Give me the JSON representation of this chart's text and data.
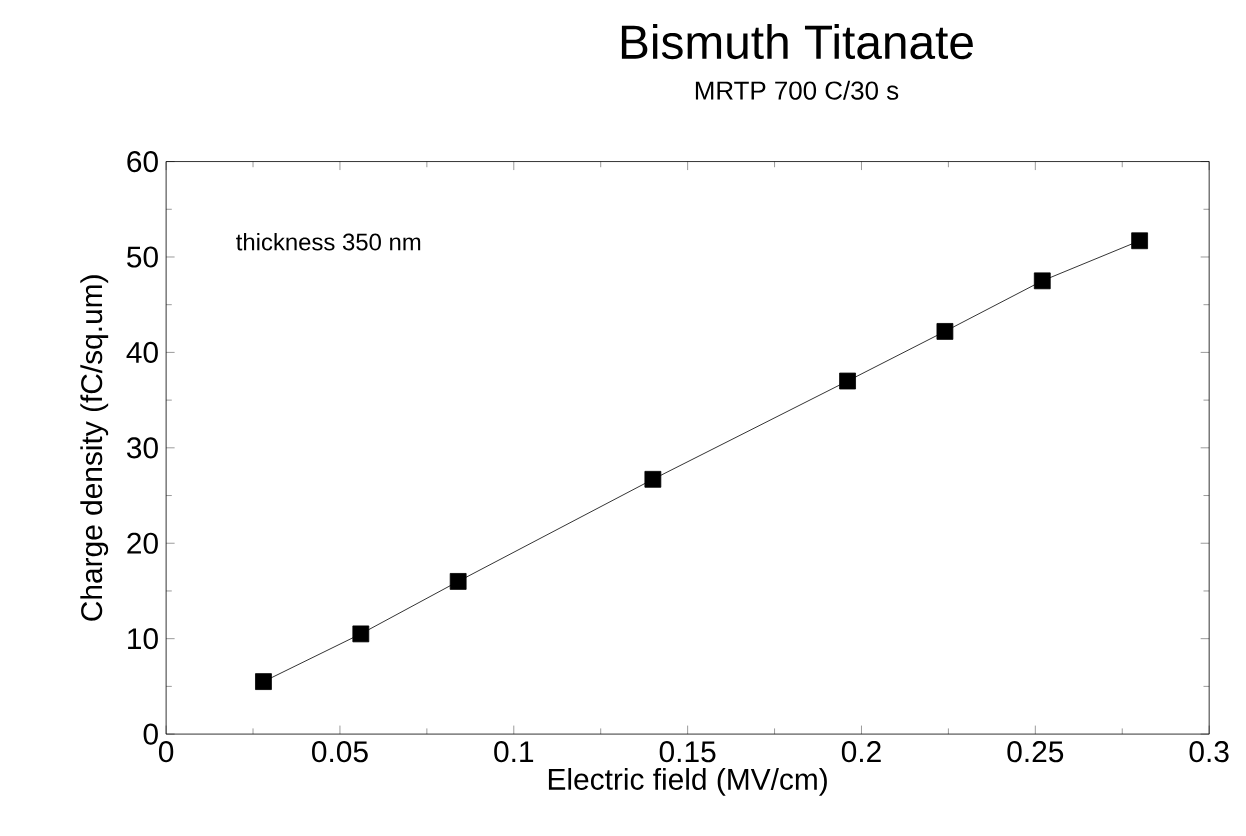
{
  "chart_data": {
    "type": "line",
    "title": "Bismuth Titanate",
    "subtitle": "MRTP 700 C/30 s",
    "xlabel": "Electric field (MV/cm)",
    "ylabel": "Charge density (fC/sq.um)",
    "annotations": [
      "thickness  350 nm"
    ],
    "x": [
      0.028,
      0.056,
      0.084,
      0.14,
      0.196,
      0.224,
      0.252,
      0.28
    ],
    "series": [
      {
        "color": "#000000",
        "values": [
          5.5,
          10.5,
          16,
          26.7,
          37,
          42.2,
          47.5,
          51.7
        ]
      }
    ],
    "xlim": [
      0,
      0.3
    ],
    "ylim": [
      0,
      60
    ],
    "xticks": [
      0,
      0.05,
      0.1,
      0.15,
      0.2,
      0.25,
      0.3
    ],
    "yticks": [
      0,
      10,
      20,
      30,
      40,
      50,
      60
    ],
    "marker": "square",
    "line_style": "solid",
    "grid": false
  }
}
